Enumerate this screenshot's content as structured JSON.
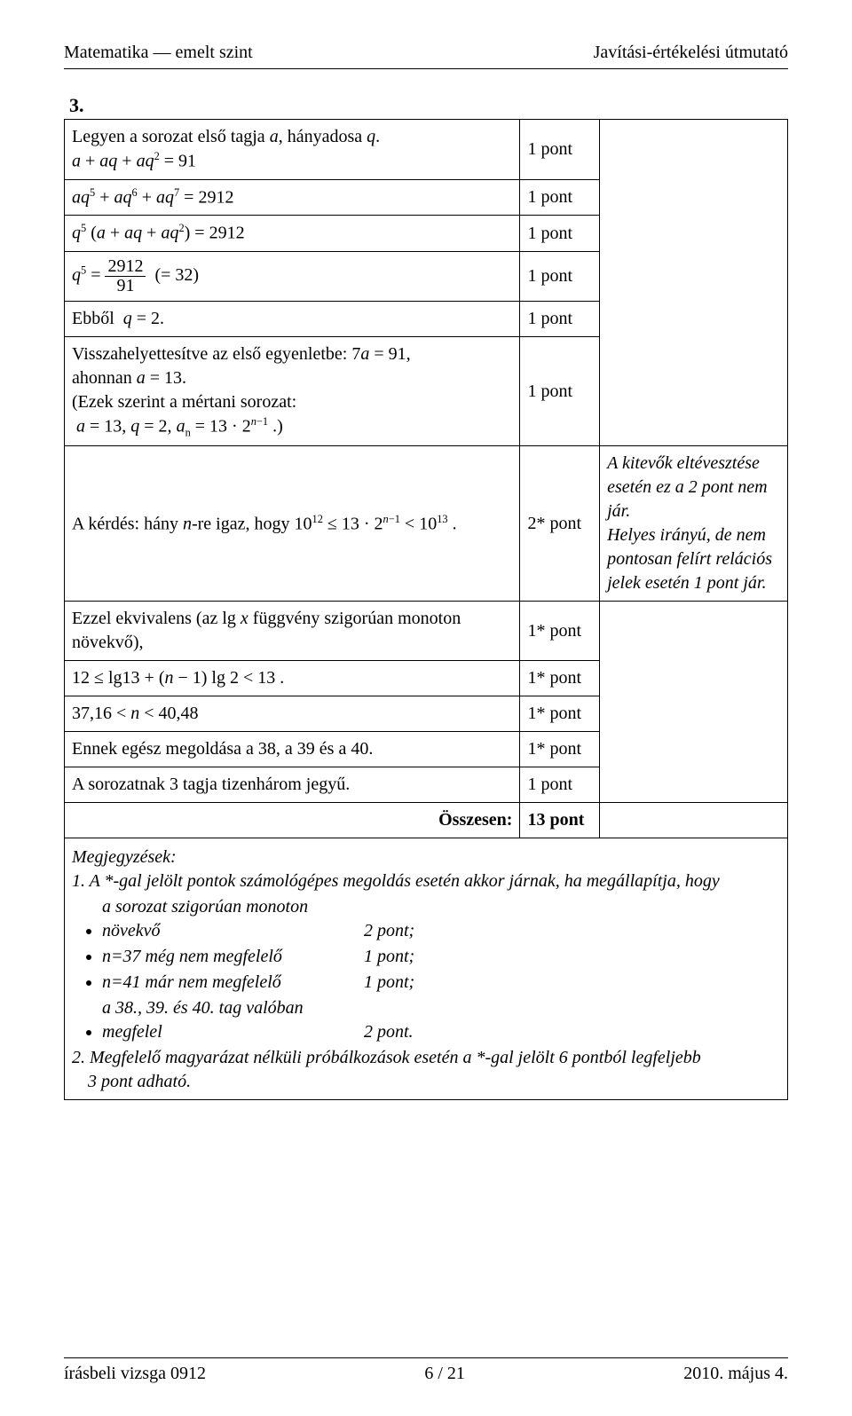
{
  "header": {
    "left": "Matematika — emelt szint",
    "right": "Javítási-értékelési útmutató"
  },
  "problem": {
    "number": "3."
  },
  "rows": [
    {
      "step": "Legyen a sorozat első tagja a, hányadosa q.\n a + aq + aq² = 91",
      "points": "1 pont"
    },
    {
      "step": "aq⁵ + aq⁶ + aq⁷ = 2912",
      "points": "1 pont"
    },
    {
      "step": "q⁵ (a + aq + aq²) = 2912",
      "points": "1 pont"
    },
    {
      "step_html": "q⁵ = <FRAC 2912/91>  (= 32)",
      "points": "1 pont"
    },
    {
      "step": "Ebből  q = 2.",
      "points": "1 pont"
    },
    {
      "step": "Visszahelyettesítve az első egyenletbe: 7a = 91,\nahonnan a = 13.\n(Ezek szerint a mértani sorozat:\n a = 13, q = 2, aₙ = 13 · 2ⁿ⁻¹ .)",
      "points": "1 pont"
    },
    {
      "step": "A kérdés: hány n-re igaz, hogy 10¹² ≤ 13 · 2ⁿ⁻¹ < 10¹³ .",
      "points": "2* pont",
      "note": "A kitevők eltévesztése esetén ez a 2 pont nem jár.\nHelyes irányú, de nem pontosan felírt relációs jelek esetén 1 pont jár."
    },
    {
      "step": "Ezzel ekvivalens (az lg x függvény szigorúan monoton növekvő),",
      "points": "1* pont"
    },
    {
      "step": "12 ≤ lg13 + (n − 1) lg 2 < 13 .",
      "points": "1* pont"
    },
    {
      "step": "37,16 < n < 40,48",
      "points": "1* pont"
    },
    {
      "step": "Ennek egész megoldása a 38, a 39 és a 40.",
      "points": "1* pont"
    },
    {
      "step": "A sorozatnak 3 tagja tizenhárom jegyű.",
      "points": "1 pont"
    }
  ],
  "total": {
    "label": "Összesen:",
    "points": "13 pont"
  },
  "notes": {
    "heading": "Megjegyzések:",
    "line1_prefix": "1. A *-gal jelölt pontok számológépes megoldás esetén akkor járnak, ha megállapítja, hogy",
    "bullets": [
      {
        "text": "a sorozat szigorúan monoton növekvő",
        "pts": "2 pont;"
      },
      {
        "text": "n=37 még nem megfelelő",
        "pts": "1 pont;"
      },
      {
        "text": "n=41 már nem megfelelő",
        "pts": "1 pont;"
      },
      {
        "text": "a 38., 39. és 40. tag valóban megfelel",
        "pts": "2 pont."
      }
    ],
    "line2": "2. Megfelelő magyarázat nélküli próbálkozások esetén a *-gal jelölt 6 pontból legfeljebb 3 pont adható."
  },
  "footer": {
    "left": "írásbeli vizsga 0912",
    "center": "6 / 21",
    "right": "2010. május 4."
  }
}
